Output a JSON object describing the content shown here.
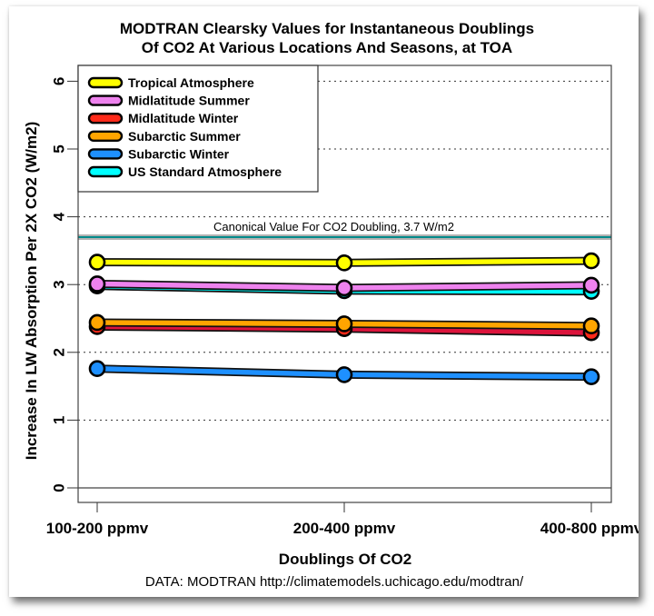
{
  "chart_data": {
    "type": "line",
    "title": [
      "MODTRAN Clearsky Values for Instantaneous Doublings",
      "Of CO2 At Various Locations And Seasons, at TOA"
    ],
    "xlabel": "Doublings Of CO2",
    "ylabel": "Increase In LW Absorption Per 2X CO2 (W/m2)",
    "categories": [
      "100-200 ppmv",
      "200-400 ppmv",
      "400-800 ppmv"
    ],
    "ylim": [
      -0.2,
      6.25
    ],
    "yticks": [
      0,
      1,
      2,
      3,
      4,
      5,
      6
    ],
    "grid": "horizontal dotted",
    "legend_position": "top-left",
    "series": [
      {
        "name": "Tropical Atmosphere",
        "color": "#ffff00",
        "values": [
          3.33,
          3.32,
          3.35
        ]
      },
      {
        "name": "Midlatitude Summer",
        "color": "#ee82ee",
        "values": [
          3.01,
          2.95,
          2.99
        ]
      },
      {
        "name": "Midlatitude Winter",
        "color": "#ff2a1a",
        "values": [
          2.38,
          2.35,
          2.29
        ]
      },
      {
        "name": "Subarctic Summer",
        "color": "#ffa500",
        "values": [
          2.44,
          2.42,
          2.39
        ]
      },
      {
        "name": "Subarctic Winter",
        "color": "#1e90ff",
        "values": [
          1.76,
          1.67,
          1.64
        ]
      },
      {
        "name": "US Standard Atmosphere",
        "color": "#00ffff",
        "values": [
          2.98,
          2.91,
          2.9
        ]
      }
    ],
    "draw_order": [
      4,
      2,
      3,
      5,
      1,
      0
    ],
    "midwinter_line_color": "#dc143c",
    "reference_line": {
      "value": 3.7,
      "label": "Canonical Value For CO2 Doubling, 3.7 W/m2",
      "color": "#008b8b"
    },
    "source": "DATA: MODTRAN http://climatemodels.uchicago.edu/modtran/"
  }
}
